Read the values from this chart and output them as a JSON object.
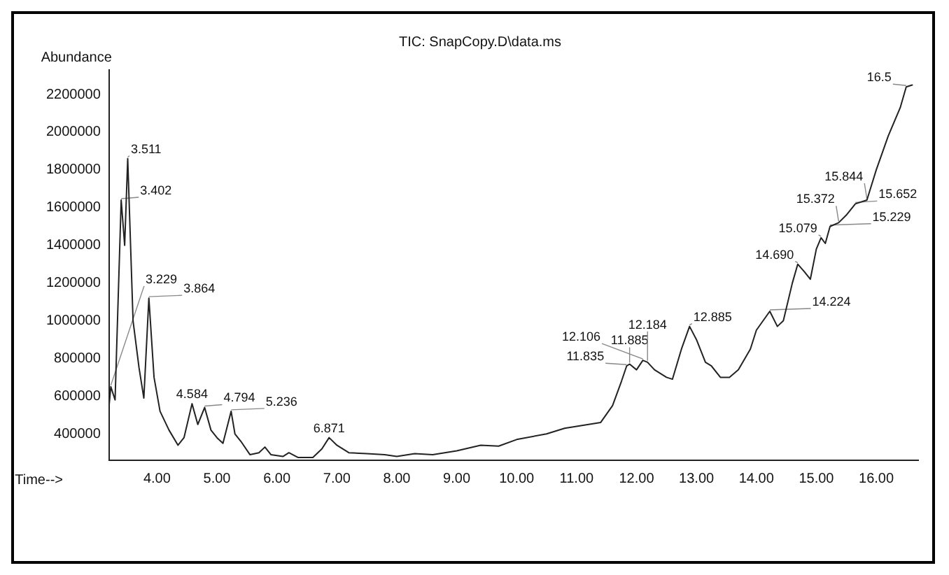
{
  "chart_data": {
    "type": "line",
    "title": "TIC: SnapCopy.D\\data.ms",
    "xlabel": "Time-->",
    "ylabel": "Abundance",
    "xlim": [
      3.2,
      16.7
    ],
    "xticks": [
      {
        "value": 4,
        "label": "4.00"
      },
      {
        "value": 5,
        "label": "5.00"
      },
      {
        "value": 6,
        "label": "6.00"
      },
      {
        "value": 7,
        "label": "7.00"
      },
      {
        "value": 8,
        "label": "8.00"
      },
      {
        "value": 9,
        "label": "9.00"
      },
      {
        "value": 10,
        "label": "10.00"
      },
      {
        "value": 11,
        "label": "11.00"
      },
      {
        "value": 12,
        "label": "12.00"
      },
      {
        "value": 13,
        "label": "13.00"
      },
      {
        "value": 14,
        "label": "14.00"
      },
      {
        "value": 15,
        "label": "15.00"
      },
      {
        "value": 16,
        "label": "16.00"
      }
    ],
    "ylim": [
      260000,
      2330000
    ],
    "yticks": [
      400000,
      600000,
      800000,
      1000000,
      1200000,
      1400000,
      1600000,
      1800000,
      2000000,
      2200000
    ],
    "grid": false,
    "legend": false,
    "marker": "none",
    "line_style": "solid",
    "series": [
      {
        "color": "#222222",
        "x": [
          3.2,
          3.229,
          3.3,
          3.402,
          3.46,
          3.511,
          3.6,
          3.7,
          3.78,
          3.864,
          3.95,
          4.05,
          4.2,
          4.35,
          4.45,
          4.584,
          4.68,
          4.794,
          4.9,
          5.0,
          5.1,
          5.236,
          5.3,
          5.4,
          5.55,
          5.7,
          5.8,
          5.9,
          6.1,
          6.2,
          6.35,
          6.6,
          6.75,
          6.871,
          7.0,
          7.2,
          7.5,
          7.8,
          8.0,
          8.3,
          8.6,
          9.0,
          9.4,
          9.7,
          10.0,
          10.5,
          10.8,
          11.0,
          11.4,
          11.6,
          11.75,
          11.835,
          11.885,
          12.0,
          12.106,
          12.184,
          12.3,
          12.5,
          12.6,
          12.75,
          12.885,
          13.0,
          13.15,
          13.25,
          13.4,
          13.55,
          13.7,
          13.9,
          14.0,
          14.224,
          14.35,
          14.45,
          14.6,
          14.69,
          14.8,
          14.9,
          15.0,
          15.079,
          15.15,
          15.229,
          15.372,
          15.5,
          15.652,
          15.844,
          16.0,
          16.2,
          16.4,
          16.5,
          16.6
        ],
        "values": [
          550000,
          650000,
          580000,
          1640000,
          1400000,
          1860000,
          1000000,
          750000,
          590000,
          1120000,
          700000,
          520000,
          420000,
          340000,
          380000,
          560000,
          450000,
          540000,
          420000,
          380000,
          350000,
          520000,
          400000,
          360000,
          290000,
          300000,
          330000,
          290000,
          280000,
          300000,
          275000,
          275000,
          320000,
          380000,
          340000,
          300000,
          295000,
          290000,
          280000,
          295000,
          290000,
          310000,
          340000,
          335000,
          370000,
          400000,
          430000,
          440000,
          460000,
          550000,
          680000,
          760000,
          770000,
          740000,
          790000,
          780000,
          740000,
          700000,
          690000,
          850000,
          970000,
          900000,
          780000,
          760000,
          700000,
          700000,
          740000,
          850000,
          950000,
          1050000,
          970000,
          1000000,
          1200000,
          1300000,
          1260000,
          1220000,
          1380000,
          1440000,
          1410000,
          1500000,
          1520000,
          1560000,
          1620000,
          1640000,
          1800000,
          1980000,
          2130000,
          2240000,
          2250000
        ]
      }
    ],
    "annotations": [
      {
        "text": "3.229",
        "x": 3.229,
        "y": 650000
      },
      {
        "text": "3.402",
        "x": 3.402,
        "y": 1640000
      },
      {
        "text": "3.511",
        "x": 3.511,
        "y": 1860000
      },
      {
        "text": "3.864",
        "x": 3.864,
        "y": 1120000
      },
      {
        "text": "4.584",
        "x": 4.584,
        "y": 560000
      },
      {
        "text": "4.794",
        "x": 4.794,
        "y": 540000
      },
      {
        "text": "5.236",
        "x": 5.236,
        "y": 520000
      },
      {
        "text": "6.871",
        "x": 6.871,
        "y": 380000
      },
      {
        "text": "11.835",
        "x": 11.835,
        "y": 760000
      },
      {
        "text": "11.885",
        "x": 11.885,
        "y": 770000
      },
      {
        "text": "12.106",
        "x": 12.106,
        "y": 790000
      },
      {
        "text": "12.184",
        "x": 12.184,
        "y": 780000
      },
      {
        "text": "12.885",
        "x": 12.885,
        "y": 970000
      },
      {
        "text": "14.224",
        "x": 14.224,
        "y": 1050000
      },
      {
        "text": "14.690",
        "x": 14.69,
        "y": 1300000
      },
      {
        "text": "15.079",
        "x": 15.079,
        "y": 1440000
      },
      {
        "text": "15.229",
        "x": 15.229,
        "y": 1500000
      },
      {
        "text": "15.372",
        "x": 15.372,
        "y": 1520000
      },
      {
        "text": "15.652",
        "x": 15.652,
        "y": 1620000
      },
      {
        "text": "15.844",
        "x": 15.844,
        "y": 1640000
      },
      {
        "text": "16.5",
        "x": 16.5,
        "y": 2240000
      }
    ]
  }
}
